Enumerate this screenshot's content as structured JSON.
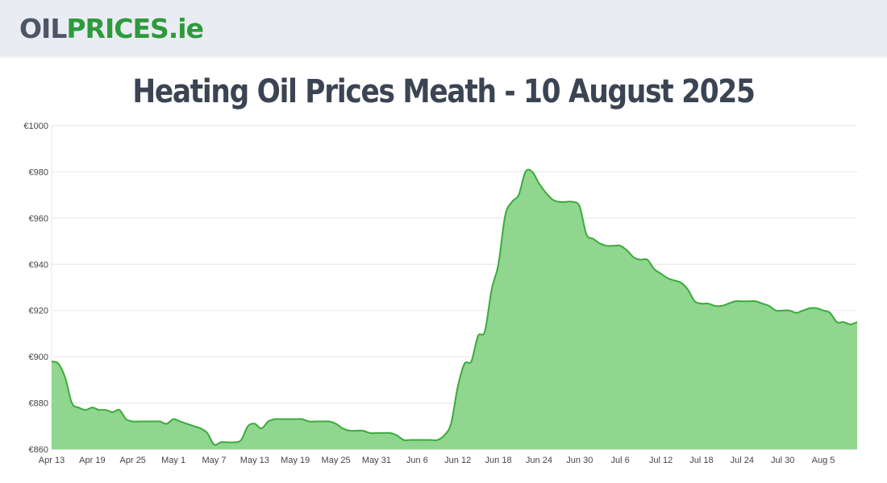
{
  "header": {
    "logo_part1": "OIL",
    "logo_part2": "PRICES.ie"
  },
  "page": {
    "title": "Heating Oil Prices Meath - 10 August 2025"
  },
  "chart_data": {
    "type": "area",
    "title": "Heating Oil Prices Meath - 10 August 2025",
    "xlabel": "",
    "ylabel": "",
    "x_range": [
      "2025-04-13",
      "2025-08-10"
    ],
    "ylim": [
      860,
      1000
    ],
    "grid": true,
    "legend": "none",
    "x_tick_labels": [
      "Apr 13",
      "Apr 19",
      "Apr 25",
      "May 1",
      "May 7",
      "May 13",
      "May 19",
      "May 25",
      "May 31",
      "Jun 6",
      "Jun 12",
      "Jun 18",
      "Jun 24",
      "Jun 30",
      "Jul 6",
      "Jul 12",
      "Jul 18",
      "Jul 24",
      "Jul 30",
      "Aug 5"
    ],
    "y_ticks": [
      860,
      880,
      900,
      920,
      940,
      960,
      980,
      1000
    ],
    "y_tick_labels": [
      "€860",
      "€880",
      "€900",
      "€920",
      "€940",
      "€960",
      "€980",
      "€1000"
    ],
    "colors": {
      "line": "#3aab3a",
      "fill": "#90d68f"
    },
    "points": [
      [
        "2025-04-13",
        898
      ],
      [
        "2025-04-14",
        897
      ],
      [
        "2025-04-15",
        891
      ],
      [
        "2025-04-16",
        880
      ],
      [
        "2025-04-17",
        878
      ],
      [
        "2025-04-18",
        877
      ],
      [
        "2025-04-19",
        878
      ],
      [
        "2025-04-20",
        877
      ],
      [
        "2025-04-21",
        877
      ],
      [
        "2025-04-22",
        876
      ],
      [
        "2025-04-23",
        877
      ],
      [
        "2025-04-24",
        873
      ],
      [
        "2025-04-25",
        872
      ],
      [
        "2025-04-26",
        872
      ],
      [
        "2025-04-27",
        872
      ],
      [
        "2025-04-28",
        872
      ],
      [
        "2025-04-29",
        872
      ],
      [
        "2025-04-30",
        871
      ],
      [
        "2025-05-01",
        873
      ],
      [
        "2025-05-02",
        872
      ],
      [
        "2025-05-03",
        871
      ],
      [
        "2025-05-04",
        870
      ],
      [
        "2025-05-05",
        869
      ],
      [
        "2025-05-06",
        867
      ],
      [
        "2025-05-07",
        862
      ],
      [
        "2025-05-08",
        863
      ],
      [
        "2025-05-09",
        863
      ],
      [
        "2025-05-10",
        863
      ],
      [
        "2025-05-11",
        864
      ],
      [
        "2025-05-12",
        870
      ],
      [
        "2025-05-13",
        871
      ],
      [
        "2025-05-14",
        869
      ],
      [
        "2025-05-15",
        872
      ],
      [
        "2025-05-16",
        873
      ],
      [
        "2025-05-17",
        873
      ],
      [
        "2025-05-18",
        873
      ],
      [
        "2025-05-19",
        873
      ],
      [
        "2025-05-20",
        873
      ],
      [
        "2025-05-21",
        872
      ],
      [
        "2025-05-22",
        872
      ],
      [
        "2025-05-23",
        872
      ],
      [
        "2025-05-24",
        872
      ],
      [
        "2025-05-25",
        871
      ],
      [
        "2025-05-26",
        869
      ],
      [
        "2025-05-27",
        868
      ],
      [
        "2025-05-28",
        868
      ],
      [
        "2025-05-29",
        868
      ],
      [
        "2025-05-30",
        867
      ],
      [
        "2025-05-31",
        867
      ],
      [
        "2025-06-01",
        867
      ],
      [
        "2025-06-02",
        867
      ],
      [
        "2025-06-03",
        866
      ],
      [
        "2025-06-04",
        864
      ],
      [
        "2025-06-05",
        864
      ],
      [
        "2025-06-06",
        864
      ],
      [
        "2025-06-07",
        864
      ],
      [
        "2025-06-08",
        864
      ],
      [
        "2025-06-09",
        864
      ],
      [
        "2025-06-10",
        866
      ],
      [
        "2025-06-11",
        871
      ],
      [
        "2025-06-12",
        887
      ],
      [
        "2025-06-13",
        897
      ],
      [
        "2025-06-14",
        898
      ],
      [
        "2025-06-15",
        909
      ],
      [
        "2025-06-16",
        911
      ],
      [
        "2025-06-17",
        929
      ],
      [
        "2025-06-18",
        940
      ],
      [
        "2025-06-19",
        961
      ],
      [
        "2025-06-20",
        967
      ],
      [
        "2025-06-21",
        970
      ],
      [
        "2025-06-22",
        980
      ],
      [
        "2025-06-23",
        980
      ],
      [
        "2025-06-24",
        975
      ],
      [
        "2025-06-25",
        971
      ],
      [
        "2025-06-26",
        968
      ],
      [
        "2025-06-27",
        967
      ],
      [
        "2025-06-28",
        967
      ],
      [
        "2025-06-29",
        967
      ],
      [
        "2025-06-30",
        965
      ],
      [
        "2025-07-01",
        953
      ],
      [
        "2025-07-02",
        951
      ],
      [
        "2025-07-03",
        949
      ],
      [
        "2025-07-04",
        948
      ],
      [
        "2025-07-05",
        948
      ],
      [
        "2025-07-06",
        948
      ],
      [
        "2025-07-07",
        946
      ],
      [
        "2025-07-08",
        943
      ],
      [
        "2025-07-09",
        942
      ],
      [
        "2025-07-10",
        942
      ],
      [
        "2025-07-11",
        938
      ],
      [
        "2025-07-12",
        936
      ],
      [
        "2025-07-13",
        934
      ],
      [
        "2025-07-14",
        933
      ],
      [
        "2025-07-15",
        932
      ],
      [
        "2025-07-16",
        929
      ],
      [
        "2025-07-17",
        924
      ],
      [
        "2025-07-18",
        923
      ],
      [
        "2025-07-19",
        923
      ],
      [
        "2025-07-20",
        922
      ],
      [
        "2025-07-21",
        922
      ],
      [
        "2025-07-22",
        923
      ],
      [
        "2025-07-23",
        924
      ],
      [
        "2025-07-24",
        924
      ],
      [
        "2025-07-25",
        924
      ],
      [
        "2025-07-26",
        924
      ],
      [
        "2025-07-27",
        923
      ],
      [
        "2025-07-28",
        922
      ],
      [
        "2025-07-29",
        920
      ],
      [
        "2025-07-30",
        920
      ],
      [
        "2025-07-31",
        920
      ],
      [
        "2025-08-01",
        919
      ],
      [
        "2025-08-02",
        920
      ],
      [
        "2025-08-03",
        921
      ],
      [
        "2025-08-04",
        921
      ],
      [
        "2025-08-05",
        920
      ],
      [
        "2025-08-06",
        919
      ],
      [
        "2025-08-07",
        915
      ],
      [
        "2025-08-08",
        915
      ],
      [
        "2025-08-09",
        914
      ],
      [
        "2025-08-10",
        915
      ]
    ]
  }
}
